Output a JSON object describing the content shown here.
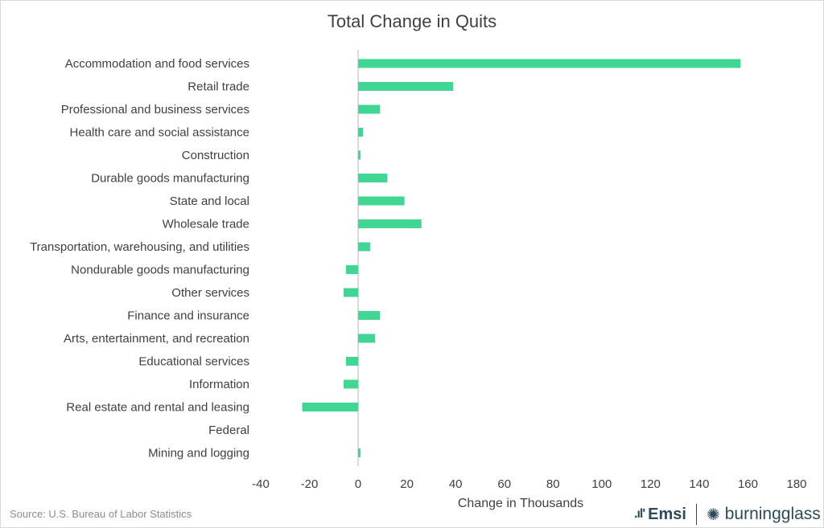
{
  "chart_data": {
    "type": "bar",
    "orientation": "horizontal",
    "title": "Total Change in Quits",
    "xlabel": "Change in Thousands",
    "ylabel": "",
    "xlim": [
      -40,
      180
    ],
    "xticks": [
      -40,
      -20,
      0,
      20,
      40,
      60,
      80,
      100,
      120,
      140,
      160,
      180
    ],
    "grid": false,
    "categories": [
      "Accommodation and food services",
      "Retail trade",
      "Professional and business services",
      "Health care and social assistance",
      "Construction",
      "Durable goods manufacturing",
      "State and local",
      "Wholesale trade",
      "Transportation, warehousing, and utilities",
      "Nondurable goods manufacturing",
      "Other services",
      "Finance and insurance",
      "Arts, entertainment, and recreation",
      "Educational services",
      "Information",
      "Real estate and rental and leasing",
      "Federal",
      "Mining and logging"
    ],
    "values": [
      157,
      39,
      9,
      2,
      1,
      12,
      19,
      26,
      5,
      -5,
      -6,
      9,
      7,
      -5,
      -6,
      -23,
      0,
      1
    ],
    "bar_color": "#41d693"
  },
  "footer": {
    "source": "Source:  U.S. Bureau of Labor Statistics",
    "logo_emsi": "Emsi",
    "logo_bg": "burningglass"
  }
}
